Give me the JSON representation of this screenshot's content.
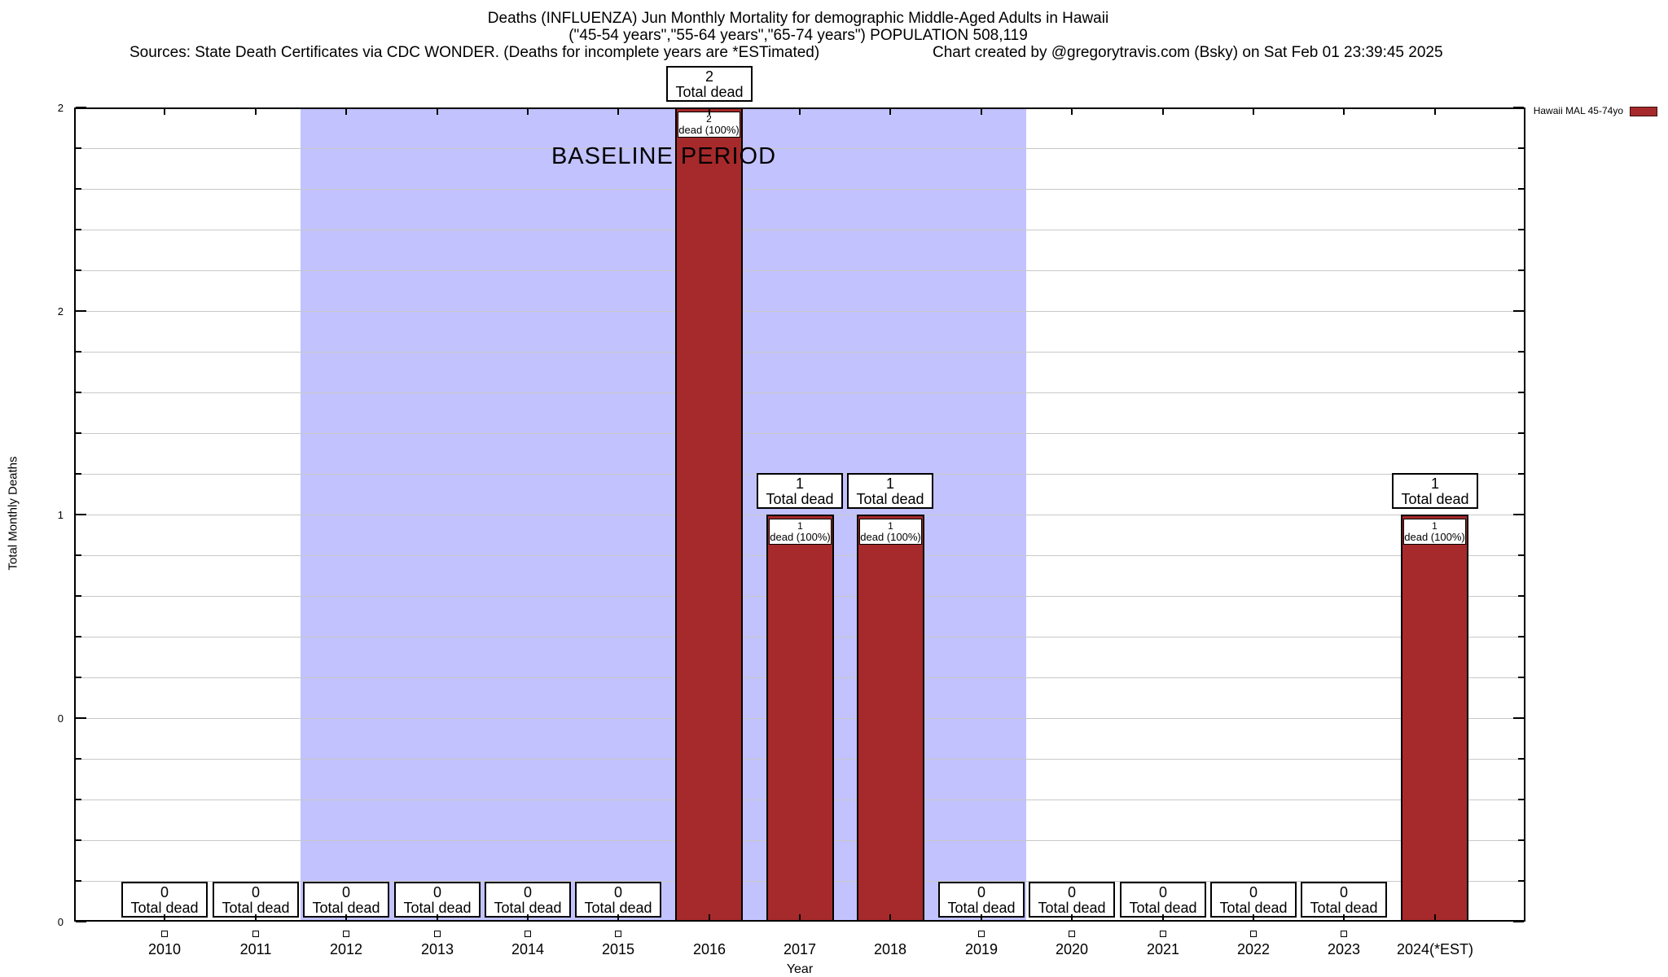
{
  "header": {
    "title_line1": "Deaths (INFLUENZA) Jun Monthly Mortality for demographic Middle-Aged Adults in Hawaii",
    "title_line2": "(\"45-54 years\",\"55-64 years\",\"65-74 years\") POPULATION 508,119",
    "source_note": "Sources: State Death Certificates via CDC WONDER. (Deaths for incomplete years are *ESTimated)",
    "credit": "Chart created by @gregorytravis.com (Bsky) on Sat Feb 01 23:39:45 2025"
  },
  "legend": {
    "label": "Hawaii MAL 45-74yo",
    "swatch_color": "#a62a2b"
  },
  "chart_data": {
    "type": "bar",
    "title": "Deaths (INFLUENZA) Jun Monthly Mortality for demographic Middle-Aged Adults in Hawaii",
    "subtitle": "(\"45-54 years\",\"55-64 years\",\"65-74 years\") POPULATION 508,119",
    "xlabel": "Year",
    "ylabel": "Total Monthly Deaths",
    "categories": [
      "2010",
      "2011",
      "2012",
      "2013",
      "2014",
      "2015",
      "2016",
      "2017",
      "2018",
      "2019",
      "2020",
      "2021",
      "2022",
      "2023",
      "2024(*EST)"
    ],
    "series": [
      {
        "name": "Hawaii MAL 45-74yo",
        "values": [
          0,
          0,
          0,
          0,
          0,
          0,
          2,
          1,
          1,
          0,
          0,
          0,
          0,
          0,
          1
        ]
      }
    ],
    "ylim": [
      0,
      2
    ],
    "y_major_ticks": [
      {
        "value": 0,
        "label": "0"
      },
      {
        "value": 0.5,
        "label": "0"
      },
      {
        "value": 1,
        "label": "1"
      },
      {
        "value": 1.5,
        "label": "2"
      },
      {
        "value": 2,
        "label": "2"
      }
    ],
    "y_minor_step": 0.1,
    "grid": true,
    "legend_position": "top-right",
    "bar_label_suffix": "Total dead",
    "bar_pct_suffix": "dead (100%)",
    "baseline_region": {
      "label": "BASELINE PERIOD",
      "from_category": "2012",
      "to_category": "2019",
      "color": "#c2c2ff"
    },
    "colors": {
      "bar": "#a62a2b",
      "bar_border": "#000000",
      "grid": "#c8c8c8",
      "background": "#ffffff"
    }
  }
}
